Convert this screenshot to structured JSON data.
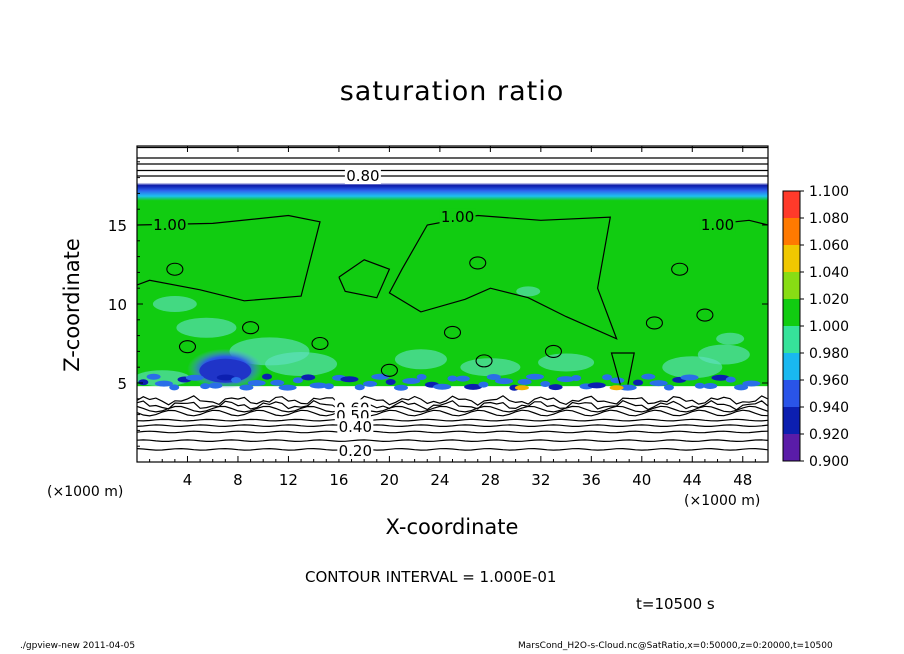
{
  "chart_data": {
    "type": "heatmap",
    "title": "saturation ratio",
    "xlabel": "X-coordinate",
    "ylabel": "Z-coordinate",
    "x_unit_left": "(×1000 m)",
    "x_unit_right": "(×1000 m)",
    "xlim": [
      0,
      50
    ],
    "ylim": [
      0,
      20
    ],
    "x_ticks": [
      4,
      8,
      12,
      16,
      20,
      24,
      28,
      32,
      36,
      40,
      44,
      48
    ],
    "y_ticks": [
      5,
      10,
      15
    ],
    "colorbar": {
      "levels": [
        0.9,
        0.92,
        0.94,
        0.96,
        0.98,
        1.0,
        1.02,
        1.04,
        1.06,
        1.08,
        1.1
      ],
      "labels": [
        "0.900",
        "0.920",
        "0.940",
        "0.960",
        "0.980",
        "1.000",
        "1.020",
        "1.040",
        "1.060",
        "1.080",
        "1.100"
      ],
      "colors": [
        "#5a1ca8",
        "#0c1fb0",
        "#2a54e8",
        "#19b8f0",
        "#36e29a",
        "#11cc11",
        "#88dd14",
        "#f0c800",
        "#ff7a00",
        "#ff3a2a",
        "#ff9090"
      ]
    },
    "contour_labels": [
      {
        "text": "0.80",
        "x": 17.9,
        "y": 18.1
      },
      {
        "text": "1.00",
        "x": 2.6,
        "y": 15.0
      },
      {
        "text": "1.00",
        "x": 25.4,
        "y": 15.5
      },
      {
        "text": "1.00",
        "x": 46.0,
        "y": 15.0
      },
      {
        "text": "0.60",
        "x": 17.1,
        "y": 3.4
      },
      {
        "text": "0.50",
        "x": 17.1,
        "y": 2.9
      },
      {
        "text": "0.40",
        "x": 17.3,
        "y": 2.2
      },
      {
        "text": "0.20",
        "x": 17.3,
        "y": 0.7
      }
    ],
    "cold_blob": {
      "x": 7.0,
      "z": 5.9
    },
    "saturated_top_z": 17.3,
    "cloud_base_z": 4.8
  },
  "contour_interval": "CONTOUR INTERVAL = 1.000E-01",
  "time": "t=10500 s",
  "footer": {
    "left": "./gpview-new  2011-04-05",
    "right": "MarsCond_H2O-s-Cloud.nc@SatRatio,x=0:50000,z=0:20000,t=10500"
  }
}
